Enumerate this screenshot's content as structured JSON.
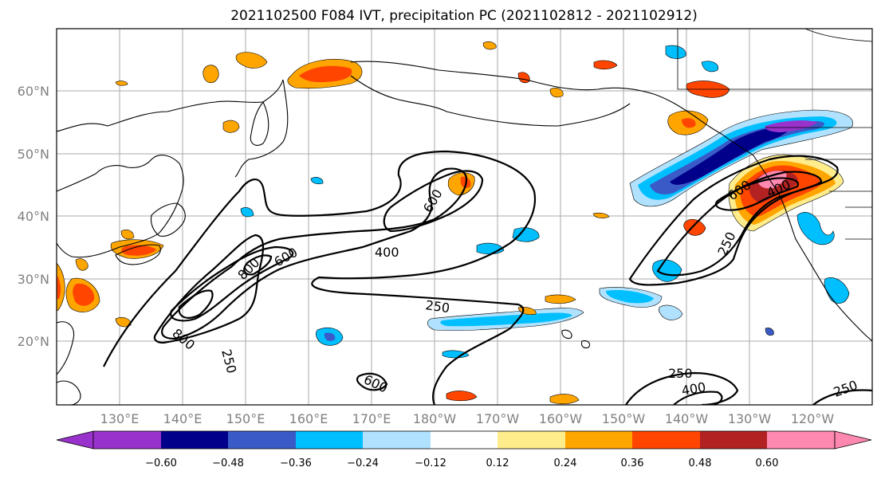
{
  "title": "2021102500 F084 IVT, precipitation PC (2021102812 - 2021102912)",
  "map": {
    "lon_labels": [
      "130°E",
      "140°E",
      "150°E",
      "160°E",
      "170°E",
      "180°W",
      "170°W",
      "160°W",
      "150°W",
      "140°W",
      "130°W",
      "120°W"
    ],
    "lat_labels": [
      "60°N",
      "50°N",
      "40°N",
      "30°N",
      "20°N"
    ],
    "ivt_contour_labels": [
      "800",
      "600",
      "400",
      "250",
      "800",
      "600",
      "250",
      "600",
      "600",
      "400",
      "250",
      "250",
      "400",
      "250"
    ]
  },
  "colorbar": {
    "colors": [
      "#9932cc",
      "#00008b",
      "#3a5bc7",
      "#00bfff",
      "#b0e2ff",
      "#ffffff",
      "#ffec8b",
      "#ffa500",
      "#ff4500",
      "#b22222",
      "#ff88b0"
    ],
    "tick_labels": [
      "−0.60",
      "−0.48",
      "−0.36",
      "−0.24",
      "−0.12",
      "0.12",
      "0.24",
      "0.36",
      "0.48",
      "0.60"
    ]
  }
}
